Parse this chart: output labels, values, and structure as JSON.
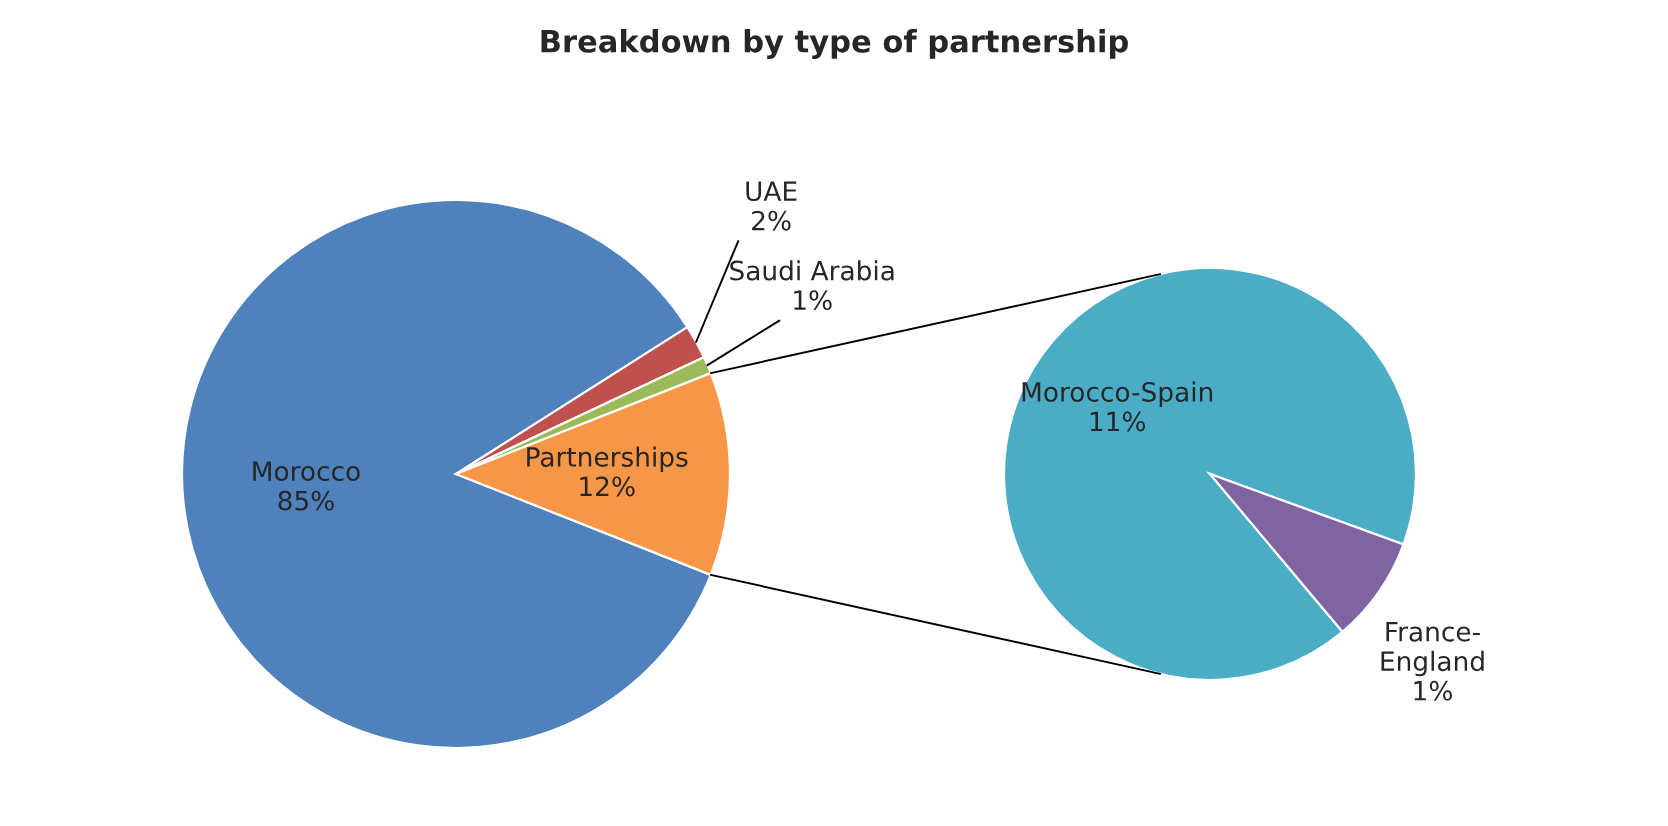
{
  "chart_data": [
    {
      "type": "pie",
      "title": "Breakdown by type of partnership",
      "categories": [
        "Morocco",
        "UAE",
        "Saudi Arabia",
        "Partnerships"
      ],
      "values": [
        85,
        2,
        1,
        12
      ],
      "value_labels": [
        "85%",
        "2%",
        "1%",
        "12%"
      ],
      "colors": [
        "#4f81bd",
        "#c0504d",
        "#9bbb59",
        "#f79646"
      ]
    },
    {
      "type": "pie",
      "categories": [
        "Morocco-Spain",
        "France-\nEngland"
      ],
      "values": [
        11,
        1
      ],
      "value_labels": [
        "11%",
        "1%"
      ],
      "colors": [
        "#4bacc6",
        "#8064a2"
      ]
    }
  ]
}
